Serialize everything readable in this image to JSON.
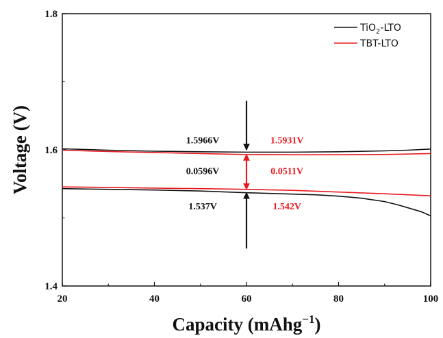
{
  "chart_data": {
    "type": "line",
    "xlabel_main": "Capacity (mAhg",
    "xlabel_sup": "−1",
    "xlabel_close": ")",
    "ylabel": "Voltage (V)",
    "xlim": [
      20,
      100
    ],
    "ylim": [
      1.4,
      1.8
    ],
    "x_ticks": [
      {
        "value": 20,
        "label": "20"
      },
      {
        "value": 40,
        "label": "40"
      },
      {
        "value": 60,
        "label": "60"
      },
      {
        "value": 80,
        "label": "80"
      },
      {
        "value": 100,
        "label": "100"
      }
    ],
    "y_ticks": [
      {
        "value": 1.4,
        "label": "1.4"
      },
      {
        "value": 1.6,
        "label": "1.6"
      },
      {
        "value": 1.8,
        "label": "1.8"
      }
    ],
    "grid": false,
    "legend_position": "top-right",
    "series": [
      {
        "name": "TiO2-LTO",
        "legend_main": "TiO",
        "legend_sub": "2",
        "legend_rest": "-LTO",
        "color": "#111111",
        "curves": [
          {
            "x": [
              20,
              30,
              40,
              50,
              60,
              70,
              80,
              90,
              95,
              100
            ],
            "y": [
              1.6015,
              1.5995,
              1.598,
              1.5972,
              1.5966,
              1.5966,
              1.5972,
              1.5985,
              1.5995,
              1.6012
            ]
          },
          {
            "x": [
              20,
              30,
              40,
              50,
              60,
              70,
              75,
              80,
              85,
              90,
              93,
              96,
              98,
              100
            ],
            "y": [
              1.543,
              1.542,
              1.541,
              1.5395,
              1.537,
              1.535,
              1.534,
              1.532,
              1.529,
              1.524,
              1.519,
              1.513,
              1.509,
              1.503
            ]
          }
        ]
      },
      {
        "name": "TBT-LTO",
        "legend_main": "TBT-LTO",
        "color": "#e8191e",
        "curves": [
          {
            "x": [
              20,
              30,
              40,
              50,
              60,
              70,
              80,
              90,
              100
            ],
            "y": [
              1.5995,
              1.5975,
              1.596,
              1.5945,
              1.5931,
              1.5928,
              1.5928,
              1.5932,
              1.5945
            ]
          },
          {
            "x": [
              20,
              30,
              40,
              50,
              60,
              70,
              80,
              90,
              100
            ],
            "y": [
              1.5455,
              1.5448,
              1.5438,
              1.543,
              1.542,
              1.5405,
              1.538,
              1.5355,
              1.5325
            ]
          }
        ]
      }
    ],
    "annotations": [
      {
        "id": "ann-tio2-upper",
        "text": "1.5966V",
        "color": "#111111",
        "x": 50.5,
        "y": 1.6095,
        "anchor": "middle"
      },
      {
        "id": "ann-tbt-upper",
        "text": "1.5931V",
        "color": "#e8191e",
        "x": 68.8,
        "y": 1.6095,
        "anchor": "middle"
      },
      {
        "id": "ann-tio2-gap",
        "text": "0.0596V",
        "color": "#111111",
        "x": 50.5,
        "y": 1.5645,
        "anchor": "middle"
      },
      {
        "id": "ann-tbt-gap",
        "text": "0.0511V",
        "color": "#e8191e",
        "x": 68.8,
        "y": 1.5645,
        "anchor": "middle"
      },
      {
        "id": "ann-tio2-lower",
        "text": "1.537V",
        "color": "#111111",
        "x": 50.5,
        "y": 1.5125,
        "anchor": "middle"
      },
      {
        "id": "ann-tbt-lower",
        "text": "1.542V",
        "color": "#e8191e",
        "x": 68.8,
        "y": 1.5125,
        "anchor": "middle"
      }
    ],
    "arrows": [
      {
        "id": "arrow-down-black",
        "color": "#111111",
        "x": 60,
        "from": 1.672,
        "to": 1.6
      },
      {
        "id": "arrow-up-black",
        "color": "#111111",
        "x": 60,
        "from": 1.455,
        "to": 1.537
      },
      {
        "id": "arrow-double-red",
        "color": "#e8191e",
        "x": 60,
        "from": 1.5931,
        "to": 1.542,
        "double": true
      }
    ]
  }
}
